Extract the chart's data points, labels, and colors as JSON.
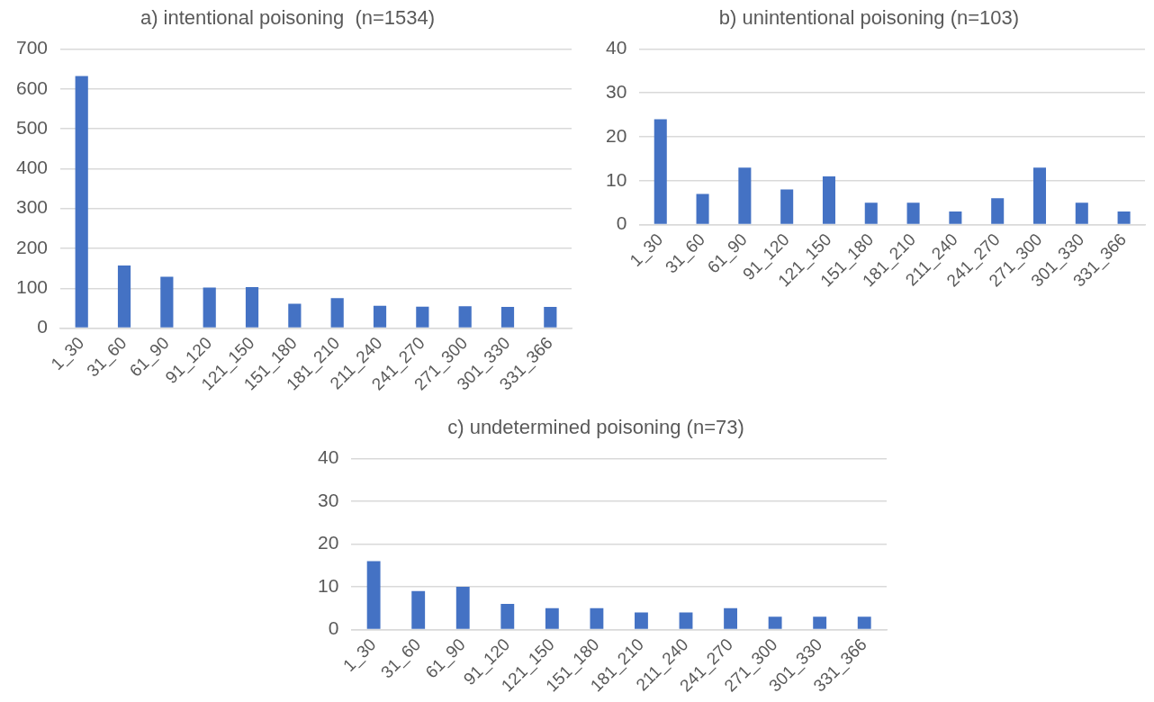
{
  "chart_data": [
    {
      "type": "bar",
      "title": "a) intentional poisoning  (n=1534)",
      "categories": [
        "1_30",
        "31_60",
        "61_90",
        "91_120",
        "121_150",
        "151_180",
        "181_210",
        "211_240",
        "241_270",
        "271_300",
        "301_330",
        "331_366"
      ],
      "values": [
        632,
        157,
        129,
        102,
        103,
        61,
        75,
        56,
        54,
        55,
        53,
        53
      ],
      "color": "#4472c4",
      "ylim": [
        0,
        700
      ],
      "yticks": [
        0,
        100,
        200,
        300,
        400,
        500,
        600,
        700
      ],
      "grid": "y",
      "legend": false
    },
    {
      "type": "bar",
      "title": "b) unintentional poisoning (n=103)",
      "categories": [
        "1_30",
        "31_60",
        "61_90",
        "91_120",
        "121_150",
        "151_180",
        "181_210",
        "211_240",
        "241_270",
        "271_300",
        "301_330",
        "331_366"
      ],
      "values": [
        24,
        7,
        13,
        8,
        11,
        5,
        5,
        3,
        6,
        13,
        5,
        3
      ],
      "color": "#4472c4",
      "ylim": [
        0,
        40
      ],
      "yticks": [
        0,
        10,
        20,
        30,
        40
      ],
      "grid": "y",
      "legend": false
    },
    {
      "type": "bar",
      "title": "c) undetermined poisoning (n=73)",
      "categories": [
        "1_30",
        "31_60",
        "61_90",
        "91_120",
        "121_150",
        "151_180",
        "181_210",
        "211_240",
        "241_270",
        "271_300",
        "301_330",
        "331_366"
      ],
      "values": [
        16,
        9,
        10,
        6,
        5,
        5,
        4,
        4,
        5,
        3,
        3,
        3
      ],
      "color": "#4472c4",
      "ylim": [
        0,
        40
      ],
      "yticks": [
        0,
        10,
        20,
        30,
        40
      ],
      "grid": "y",
      "legend": false
    }
  ]
}
